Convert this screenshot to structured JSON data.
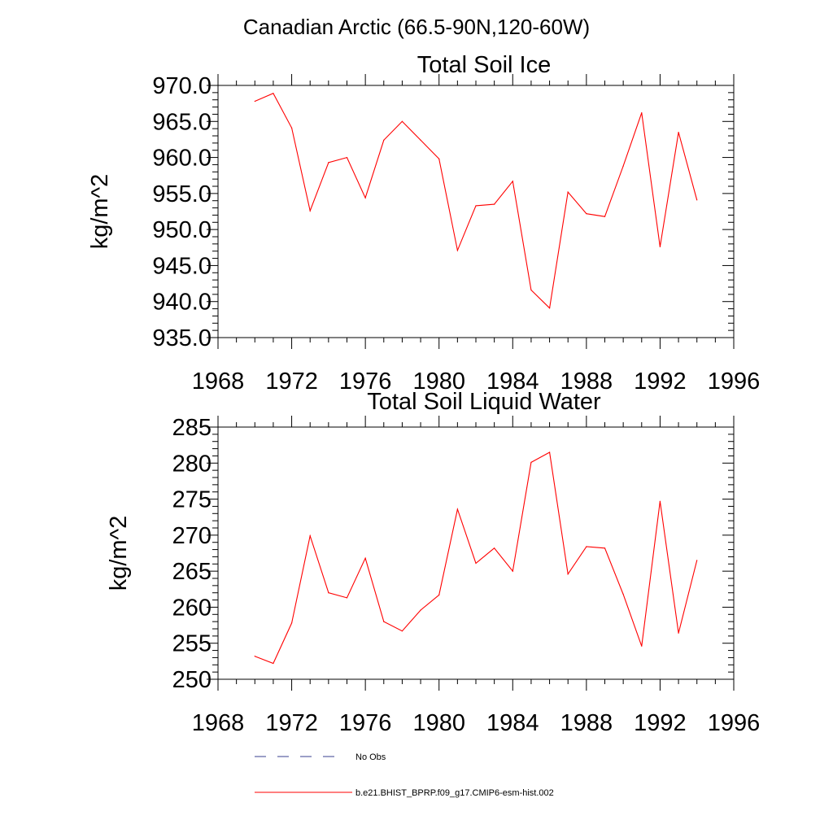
{
  "figure": {
    "title": "Canadian Arctic (66.5-90N,120-60W)"
  },
  "colors": {
    "model_line": "#ff0000",
    "obs_line": "#3a3f8f",
    "axis": "#000000"
  },
  "legend": {
    "placement": "bottom",
    "entries": [
      {
        "label": "No Obs",
        "style": "dashed",
        "color": "#3a3f8f"
      },
      {
        "label": "b.e21.BHIST_BPRP.f09_g17.CMIP6-esm-hist.002",
        "style": "solid",
        "color": "#ff0000"
      }
    ]
  },
  "chart_data": [
    {
      "type": "line",
      "title": "Total Soil Ice",
      "xlabel": "",
      "ylabel": "kg/m^2",
      "xlim": [
        1968,
        1996
      ],
      "ylim": [
        935,
        970
      ],
      "xticks": [
        "1968",
        "1972",
        "1976",
        "1980",
        "1984",
        "1988",
        "1992",
        "1996"
      ],
      "yticks": [
        "935.0",
        "940.0",
        "945.0",
        "950.0",
        "955.0",
        "960.0",
        "965.0",
        "970.0"
      ],
      "grid": false,
      "series": [
        {
          "name": "b.e21.BHIST_BPRP.f09_g17.CMIP6-esm-hist.002",
          "color": "#ff0000",
          "x": [
            1970,
            1971,
            1972,
            1973,
            1974,
            1975,
            1976,
            1977,
            1978,
            1979,
            1980,
            1981,
            1982,
            1983,
            1984,
            1985,
            1986,
            1987,
            1988,
            1989,
            1990,
            1991,
            1992,
            1993,
            1994
          ],
          "y": [
            967.8,
            968.9,
            964.1,
            952.6,
            959.3,
            960.0,
            954.4,
            962.4,
            965.0,
            962.4,
            959.8,
            947.1,
            953.3,
            953.5,
            956.7,
            941.6,
            939.1,
            955.2,
            952.2,
            951.8,
            958.8,
            966.2,
            947.6,
            963.5,
            954.1
          ]
        }
      ]
    },
    {
      "type": "line",
      "title": "Total Soil Liquid Water",
      "xlabel": "",
      "ylabel": "kg/m^2",
      "xlim": [
        1968,
        1996
      ],
      "ylim": [
        250,
        285
      ],
      "xticks": [
        "1968",
        "1972",
        "1976",
        "1980",
        "1984",
        "1988",
        "1992",
        "1996"
      ],
      "yticks": [
        "250",
        "255",
        "260",
        "265",
        "270",
        "275",
        "280",
        "285"
      ],
      "grid": false,
      "series": [
        {
          "name": "b.e21.BHIST_BPRP.f09_g17.CMIP6-esm-hist.002",
          "color": "#ff0000",
          "x": [
            1970,
            1971,
            1972,
            1973,
            1974,
            1975,
            1976,
            1977,
            1978,
            1979,
            1980,
            1981,
            1982,
            1983,
            1984,
            1985,
            1986,
            1987,
            1988,
            1989,
            1990,
            1991,
            1992,
            1993,
            1994
          ],
          "y": [
            253.2,
            252.2,
            257.8,
            269.9,
            262.0,
            261.3,
            266.8,
            258.0,
            256.7,
            259.6,
            261.7,
            273.6,
            266.1,
            268.2,
            265.0,
            280.1,
            281.5,
            264.6,
            268.4,
            268.2,
            261.8,
            254.6,
            274.7,
            256.4,
            266.5
          ]
        }
      ]
    }
  ]
}
